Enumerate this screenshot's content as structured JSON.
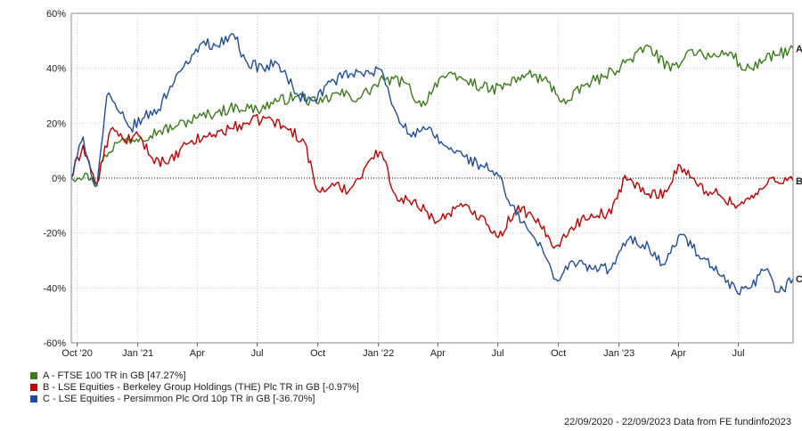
{
  "chart_data": {
    "type": "line",
    "y_unit": "%",
    "ylim": [
      -60,
      60
    ],
    "y_ticks": [
      "60%",
      "40%",
      "20%",
      "0%",
      "-20%",
      "-40%",
      "-60%"
    ],
    "x_ticks": [
      "Oct '20",
      "Jan '21",
      "Apr",
      "Jul",
      "Oct",
      "Jan '22",
      "Apr",
      "Jul",
      "Oct",
      "Jan '23",
      "Apr",
      "Jul"
    ],
    "x_range": [
      "2020-09-22",
      "2023-09-22"
    ],
    "grid": true,
    "zero_line": "dotted",
    "series": [
      {
        "id": "A",
        "name": "A - FTSE 100 TR in GB [47.27%]",
        "color": "#3b7a1a",
        "x": [
          "2020-09-22",
          "2020-10-15",
          "2020-10-30",
          "2020-11-10",
          "2020-12-01",
          "2021-01-05",
          "2021-02-01",
          "2021-03-01",
          "2021-04-01",
          "2021-05-01",
          "2021-06-01",
          "2021-07-01",
          "2021-08-01",
          "2021-09-01",
          "2021-10-01",
          "2021-11-01",
          "2021-12-01",
          "2022-01-10",
          "2022-02-10",
          "2022-03-07",
          "2022-04-05",
          "2022-05-10",
          "2022-06-20",
          "2022-07-15",
          "2022-08-15",
          "2022-09-15",
          "2022-10-12",
          "2022-11-10",
          "2022-12-10",
          "2023-01-10",
          "2023-02-15",
          "2023-03-20",
          "2023-04-20",
          "2023-05-20",
          "2023-06-20",
          "2023-07-10",
          "2023-08-10",
          "2023-09-22"
        ],
        "values": [
          0,
          2,
          -3,
          8,
          13,
          15,
          17,
          19,
          22,
          24,
          26,
          25,
          28,
          30,
          27,
          31,
          29,
          36,
          35,
          26,
          37,
          36,
          32,
          34,
          38,
          35,
          27,
          34,
          37,
          42,
          48,
          39,
          47,
          44,
          46,
          39,
          43,
          47.27
        ]
      },
      {
        "id": "B",
        "name": "B - LSE Equities - Berkeley Group Holdings (THE) Plc TR in GB [-0.97%]",
        "color": "#c00000",
        "x": [
          "2020-09-22",
          "2020-10-10",
          "2020-10-30",
          "2020-11-20",
          "2020-12-10",
          "2021-01-05",
          "2021-01-20",
          "2021-02-15",
          "2021-03-20",
          "2021-04-15",
          "2021-05-20",
          "2021-06-15",
          "2021-07-15",
          "2021-08-15",
          "2021-09-10",
          "2021-09-30",
          "2021-10-20",
          "2021-11-20",
          "2021-12-20",
          "2022-01-05",
          "2022-01-25",
          "2022-02-15",
          "2022-03-15",
          "2022-04-01",
          "2022-05-01",
          "2022-06-10",
          "2022-07-01",
          "2022-08-01",
          "2022-08-25",
          "2022-09-28",
          "2022-10-20",
          "2022-11-20",
          "2022-12-20",
          "2023-01-10",
          "2023-02-10",
          "2023-03-15",
          "2023-04-01",
          "2023-05-01",
          "2023-06-01",
          "2023-06-30",
          "2023-07-30",
          "2023-08-20",
          "2023-09-22"
        ],
        "values": [
          0,
          12,
          -3,
          18,
          14,
          15,
          8,
          5,
          13,
          15,
          18,
          20,
          22,
          18,
          14,
          -5,
          -3,
          -4,
          7,
          10,
          -6,
          -8,
          -12,
          -16,
          -10,
          -14,
          -22,
          -10,
          -15,
          -25,
          -18,
          -13,
          -13,
          1,
          -6,
          -5,
          5,
          -3,
          -6,
          -10,
          -6,
          0,
          -0.97
        ]
      },
      {
        "id": "C",
        "name": "C - LSE Equities - Persimmon Plc Ord 10p TR in GB [-36.70%]",
        "color": "#1f4e9c",
        "x": [
          "2020-09-22",
          "2020-10-10",
          "2020-10-30",
          "2020-11-15",
          "2020-12-01",
          "2020-12-20",
          "2021-01-10",
          "2021-02-01",
          "2021-03-01",
          "2021-03-20",
          "2021-04-10",
          "2021-05-01",
          "2021-05-25",
          "2021-06-15",
          "2021-07-10",
          "2021-08-01",
          "2021-09-01",
          "2021-09-25",
          "2021-10-20",
          "2021-11-20",
          "2021-12-20",
          "2022-01-05",
          "2022-01-25",
          "2022-02-20",
          "2022-03-15",
          "2022-04-10",
          "2022-05-10",
          "2022-06-10",
          "2022-06-30",
          "2022-07-20",
          "2022-08-20",
          "2022-09-10",
          "2022-10-01",
          "2022-10-20",
          "2022-11-20",
          "2022-12-20",
          "2023-01-15",
          "2023-02-15",
          "2023-03-10",
          "2023-04-05",
          "2023-05-01",
          "2023-06-01",
          "2023-06-30",
          "2023-07-20",
          "2023-08-10",
          "2023-08-30",
          "2023-09-22"
        ],
        "values": [
          0,
          15,
          -5,
          30,
          25,
          18,
          22,
          25,
          38,
          42,
          50,
          48,
          53,
          42,
          40,
          42,
          30,
          28,
          35,
          38,
          38,
          40,
          25,
          15,
          18,
          12,
          8,
          4,
          2,
          -10,
          -20,
          -28,
          -38,
          -30,
          -33,
          -33,
          -22,
          -25,
          -32,
          -20,
          -28,
          -35,
          -42,
          -40,
          -33,
          -42,
          -36.7
        ]
      }
    ]
  },
  "footer": {
    "text": "22/09/2020 - 22/09/2023 Data from FE fundinfo2023"
  }
}
